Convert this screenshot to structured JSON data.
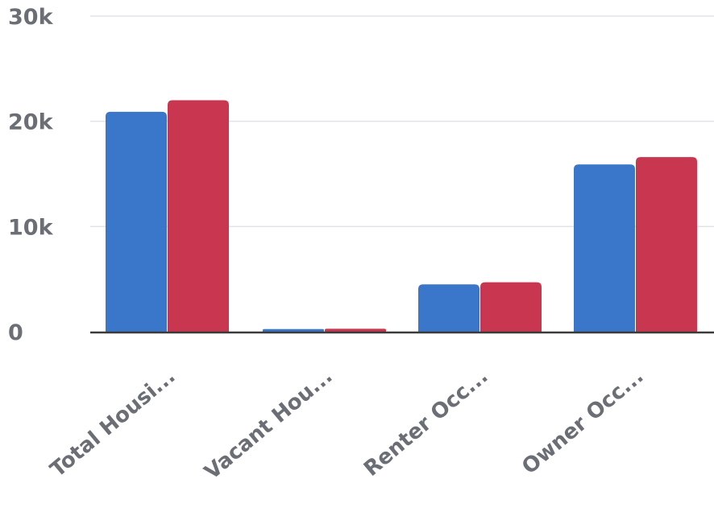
{
  "chart_data": {
    "type": "bar",
    "title": "",
    "xlabel": "",
    "ylabel": "",
    "categories": [
      "Total Housi...",
      "Vacant Hou...",
      "Renter Occ...",
      "Owner Occ..."
    ],
    "series": [
      {
        "color": "#3a76c9",
        "values": [
          20900,
          250,
          4500,
          15900
        ]
      },
      {
        "color": "#c8364f",
        "values": [
          22000,
          280,
          4700,
          16600
        ]
      }
    ],
    "ylim": [
      0,
      30000
    ],
    "yticks": [
      {
        "value": 0,
        "label": "0"
      },
      {
        "value": 10000,
        "label": "10k"
      },
      {
        "value": 20000,
        "label": "20k"
      },
      {
        "value": 30000,
        "label": "30k"
      }
    ],
    "grid": true,
    "gridColor": "#dfe3e8",
    "axisColor": "#3b3b3b",
    "labelColor": "#6b6f75",
    "legend": "none"
  }
}
